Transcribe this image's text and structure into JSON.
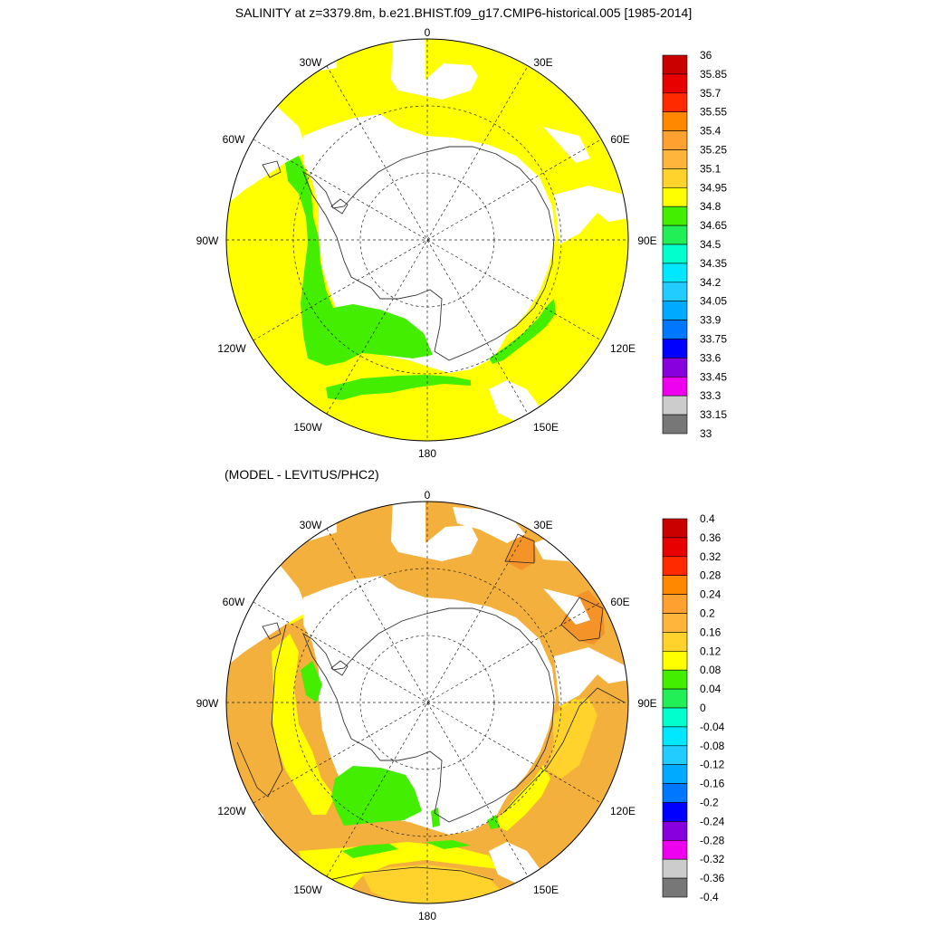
{
  "panel1": {
    "title": "SALINITY at z=3379.8m, b.e21.BHIST.f09_g17.CMIP6-historical.005 [1985-2014]",
    "longitude_labels": [
      "0",
      "30E",
      "60E",
      "90E",
      "120E",
      "150E",
      "180",
      "150W",
      "120W",
      "90W",
      "60W",
      "30W"
    ],
    "colorbar": {
      "labels": [
        "36",
        "35.85",
        "35.7",
        "35.55",
        "35.4",
        "35.25",
        "35.1",
        "34.95",
        "34.8",
        "34.65",
        "34.5",
        "34.35",
        "34.2",
        "34.05",
        "33.9",
        "33.75",
        "33.6",
        "33.45",
        "33.3",
        "33.15",
        "33"
      ],
      "colors": [
        "#c80000",
        "#e80000",
        "#ff2a00",
        "#ff8800",
        "#ffa030",
        "#ffb43c",
        "#ffd22c",
        "#ffff00",
        "#44ee00",
        "#22ee55",
        "#00ffcc",
        "#00e8ff",
        "#22ccff",
        "#00aaff",
        "#0077ff",
        "#0000ff",
        "#8800dd",
        "#ee00ee",
        "#cccccc",
        "#777777"
      ]
    },
    "land_color": "#ffffff",
    "dominant_field_color": "#ffff00",
    "secondary_field_color": "#44ee00"
  },
  "panel2": {
    "title": "(MODEL - LEVITUS/PHC2)",
    "longitude_labels": [
      "0",
      "30E",
      "60E",
      "90E",
      "120E",
      "150E",
      "180",
      "150W",
      "120W",
      "90W",
      "60W",
      "30W"
    ],
    "colorbar": {
      "labels": [
        "0.4",
        "0.36",
        "0.32",
        "0.28",
        "0.24",
        "0.2",
        "0.16",
        "0.12",
        "0.08",
        "0.04",
        "0",
        "-0.04",
        "-0.08",
        "-0.12",
        "-0.16",
        "-0.2",
        "-0.24",
        "-0.28",
        "-0.32",
        "-0.36",
        "-0.4"
      ],
      "colors": [
        "#c80000",
        "#e80000",
        "#ff2a00",
        "#ff8800",
        "#ffa030",
        "#ffb43c",
        "#ffd22c",
        "#ffff00",
        "#44ee00",
        "#22ee55",
        "#00ffcc",
        "#00e8ff",
        "#22ccff",
        "#00aaff",
        "#0077ff",
        "#0000ff",
        "#8800dd",
        "#ee00ee",
        "#cccccc",
        "#777777"
      ]
    },
    "dominant_field_color": "#f4b03c",
    "secondary_field_color": "#ffff00"
  }
}
